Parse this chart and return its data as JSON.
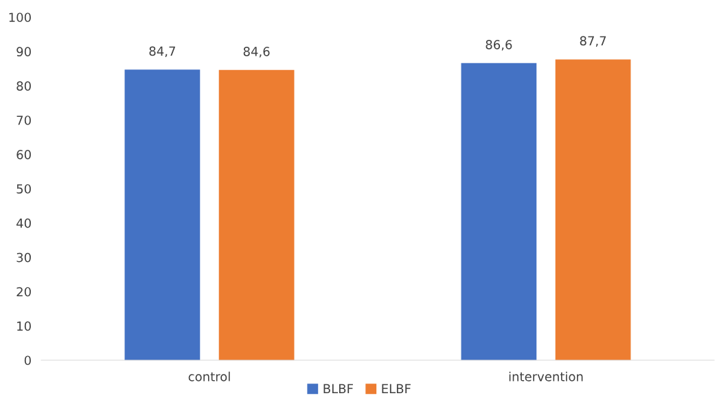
{
  "chart_data": {
    "type": "bar",
    "categories": [
      "control",
      "intervention"
    ],
    "series": [
      {
        "name": "BLBF",
        "color": "#4472c4",
        "values": [
          84.7,
          86.6
        ],
        "value_labels": [
          "84,7",
          "86,6"
        ]
      },
      {
        "name": "ELBF",
        "color": "#ed7d31",
        "values": [
          84.6,
          87.7
        ],
        "value_labels": [
          "84,6",
          "87,7"
        ]
      }
    ],
    "ylim": [
      0,
      100
    ],
    "yticks": [
      0,
      10,
      20,
      30,
      40,
      50,
      60,
      70,
      80,
      90,
      100
    ],
    "grid": false,
    "legend": "bottom"
  }
}
